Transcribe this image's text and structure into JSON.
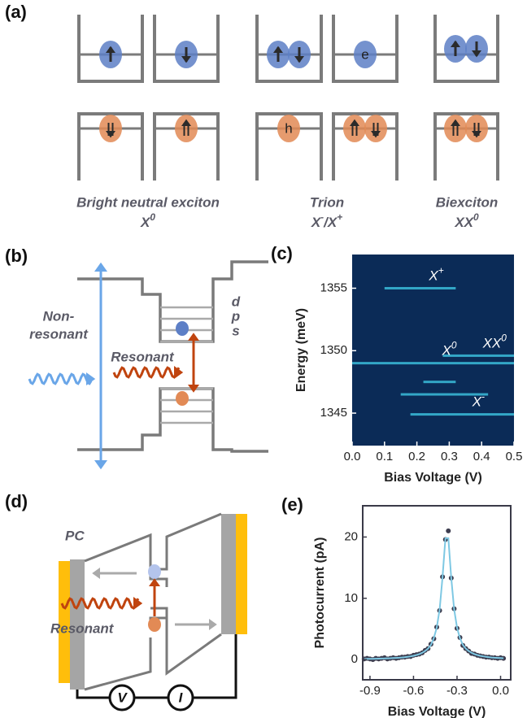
{
  "panel_a": {
    "label": "(a)",
    "electron": "e",
    "hole": "h",
    "captions": [
      {
        "title": "Bright neutral exciton",
        "symbol": [
          {
            "text": "X"
          },
          {
            "text": "0",
            "sup": true
          }
        ]
      },
      {
        "title": "Trion",
        "symbol": [
          {
            "text": "X"
          },
          {
            "text": "-",
            "sup": true
          },
          {
            "text": "/X"
          },
          {
            "text": "+",
            "sup": true
          }
        ]
      },
      {
        "title": "Biexciton",
        "symbol": [
          {
            "text": "XX"
          },
          {
            "text": "0",
            "sup": true
          }
        ]
      }
    ]
  },
  "panel_b": {
    "label": "(b)",
    "levels": [
      "d",
      "p",
      "s"
    ],
    "nonresonant": [
      "Non-",
      "resonant"
    ],
    "resonant": "Resonant"
  },
  "panel_d": {
    "label": "(d)",
    "pc": "PC",
    "resonant": "Resonant",
    "meters": [
      "V",
      "I"
    ]
  },
  "chart_data": [
    {
      "type": "heatmap",
      "label": "(c)",
      "x_label": "Bias Voltage (V)",
      "y_label": "Energy (meV)",
      "xlim": [
        0,
        0.5
      ],
      "xticks": [
        {
          "value": 0,
          "label": "0.0"
        },
        0.1,
        0.2,
        0.3,
        0.4,
        0.5
      ],
      "ylim": [
        1342.4,
        1357.7
      ],
      "yticks": [
        1345,
        1350,
        1355
      ],
      "background": "#0b2b57",
      "color": "#41d2ec",
      "features": [
        {
          "energy": 1355.0,
          "x": [
            0.1,
            0.32
          ],
          "label": [
            {
              "text": "X"
            },
            {
              "text": "+",
              "sup": true
            }
          ]
        },
        {
          "energy": 1349.6,
          "x": [
            0.28,
            0.5
          ],
          "label": [
            {
              "text": "XX"
            },
            {
              "text": "0",
              "sup": true
            }
          ]
        },
        {
          "energy": 1349.0,
          "x": [
            0,
            0.5
          ],
          "label": [
            {
              "text": "X"
            },
            {
              "text": "0",
              "sup": true
            }
          ]
        },
        {
          "energy": 1347.5,
          "x": [
            0.22,
            0.32
          ]
        },
        {
          "energy": 1346.5,
          "x": [
            0.15,
            0.42
          ]
        },
        {
          "energy": 1344.9,
          "x": [
            0.18,
            0.5
          ],
          "label": [
            {
              "text": "X"
            },
            {
              "text": "-",
              "sup": true
            }
          ]
        }
      ]
    },
    {
      "type": "scatter",
      "label": "(e)",
      "x_label": "Bias Voltage (V)",
      "y_label": "Photocurrent (pA)",
      "xlim": [
        -0.95,
        0.07
      ],
      "xticks": [
        -0.9,
        -0.6,
        -0.3,
        {
          "value": 0,
          "label": "0.0"
        }
      ],
      "ylim": [
        -3.3,
        25.1
      ],
      "yticks": [
        0,
        10,
        20
      ],
      "x": [
        -0.94,
        -0.92,
        -0.9,
        -0.88,
        -0.86,
        -0.84,
        -0.82,
        -0.8,
        -0.78,
        -0.76,
        -0.74,
        -0.72,
        -0.7,
        -0.68,
        -0.66,
        -0.64,
        -0.62,
        -0.6,
        -0.58,
        -0.56,
        -0.54,
        -0.52,
        -0.5,
        -0.48,
        -0.46,
        -0.44,
        -0.42,
        -0.4,
        -0.38,
        -0.36,
        -0.34,
        -0.32,
        -0.3,
        -0.28,
        -0.26,
        -0.24,
        -0.22,
        -0.2,
        -0.18,
        -0.16,
        -0.14,
        -0.12,
        -0.1,
        -0.08,
        -0.06,
        -0.04,
        -0.02,
        0,
        0.02
      ],
      "series": [
        {
          "color": "#3d3d4f",
          "values": [
            0.1,
            0.2,
            0.1,
            0.0,
            0.2,
            0.1,
            0.2,
            0.3,
            0.1,
            0.2,
            0.3,
            0.2,
            0.3,
            0.4,
            0.4,
            0.5,
            0.5,
            0.7,
            0.8,
            0.9,
            1.1,
            1.5,
            1.8,
            2.5,
            3.4,
            5.3,
            8.0,
            13.5,
            19.6,
            21.0,
            13.3,
            8.3,
            5.1,
            3.6,
            2.3,
            1.8,
            1.4,
            1.0,
            0.9,
            0.7,
            0.6,
            0.5,
            0.4,
            0.4,
            0.3,
            0.3,
            0.2,
            0.3,
            0.2
          ]
        },
        {
          "color": "#7ec8e3",
          "line": true,
          "values": [
            0.1,
            0.11,
            0.12,
            0.13,
            0.14,
            0.15,
            0.16,
            0.18,
            0.2,
            0.22,
            0.24,
            0.27,
            0.3,
            0.34,
            0.39,
            0.45,
            0.52,
            0.62,
            0.73,
            0.89,
            1.1,
            1.4,
            1.8,
            2.4,
            3.5,
            5.2,
            8.2,
            13.4,
            19.8,
            19.8,
            13.4,
            8.2,
            5.2,
            3.5,
            2.4,
            1.8,
            1.4,
            1.1,
            0.89,
            0.73,
            0.62,
            0.52,
            0.45,
            0.39,
            0.34,
            0.3,
            0.27,
            0.24,
            0.22
          ]
        }
      ]
    }
  ]
}
